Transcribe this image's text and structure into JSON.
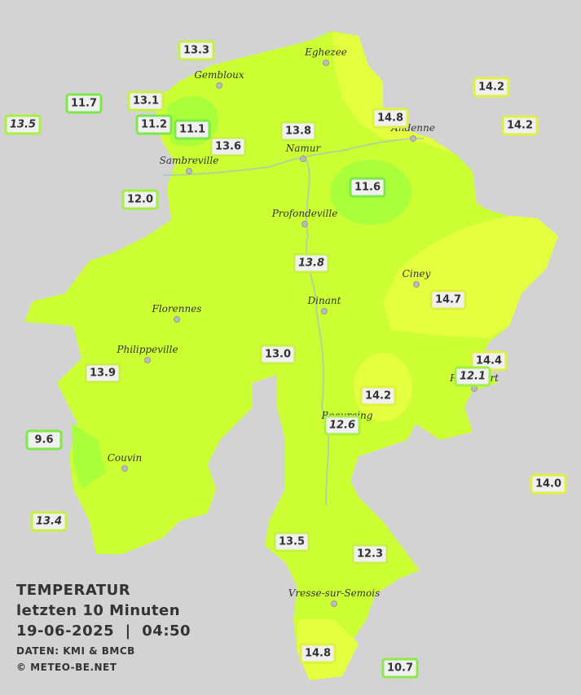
{
  "title": "TEMPERATUR",
  "subtitle": "letzten 10 Minuten",
  "datetime": "19-06-2025  |  04:50",
  "source": "DATEN: KMI & BMCB",
  "copyright": "© METEO-BE.NET",
  "towns": [
    "Eghezee",
    "Gembloux",
    "Andenne",
    "Namur",
    "Sambreville",
    "Profondeville",
    "Ciney",
    "Dinant",
    "Florennes",
    "Philippeville",
    "Rochefort",
    "Beauraing",
    "Couvin",
    "Vresse-sur-Semois"
  ],
  "stations": [
    "13.3",
    "11.7",
    "13.1",
    "13.5",
    "11.2",
    "11.1",
    "13.6",
    "13.8",
    "14.8",
    "14.2",
    "14.2",
    "12.0",
    "11.6",
    "13.8",
    "14.7",
    "13.0",
    "13.9",
    "14.4",
    "12.1",
    "14.2",
    "12.6",
    "9.6",
    "14.0",
    "13.4",
    "13.5",
    "12.3",
    "14.8",
    "10.7"
  ]
}
